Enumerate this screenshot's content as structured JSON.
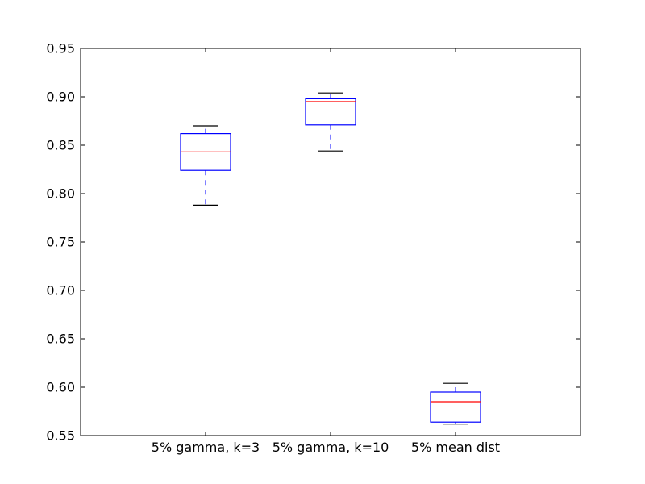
{
  "chart_data": {
    "type": "box",
    "title": "",
    "xlabel": "",
    "ylabel": "",
    "ylim": [
      0.55,
      0.95
    ],
    "yticks": [
      0.55,
      0.6,
      0.65,
      0.7,
      0.75,
      0.8,
      0.85,
      0.9,
      0.95
    ],
    "ytick_labels": [
      "0.55",
      "0.60",
      "0.65",
      "0.70",
      "0.75",
      "0.80",
      "0.85",
      "0.90",
      "0.95"
    ],
    "grid": false,
    "categories": [
      "5% gamma, k=3",
      "5% gamma, k=10",
      "5% mean dist"
    ],
    "boxes": [
      {
        "whisker_low": 0.788,
        "q1": 0.824,
        "median": 0.843,
        "q3": 0.862,
        "whisker_high": 0.87
      },
      {
        "whisker_low": 0.844,
        "q1": 0.871,
        "median": 0.895,
        "q3": 0.898,
        "whisker_high": 0.904
      },
      {
        "whisker_low": 0.562,
        "q1": 0.564,
        "median": 0.585,
        "q3": 0.595,
        "whisker_high": 0.604
      }
    ],
    "colors": {
      "box": "#0000ff",
      "median": "#ff0000",
      "whisker": "#0000ff",
      "cap": "#000000",
      "axis": "#000000"
    }
  }
}
